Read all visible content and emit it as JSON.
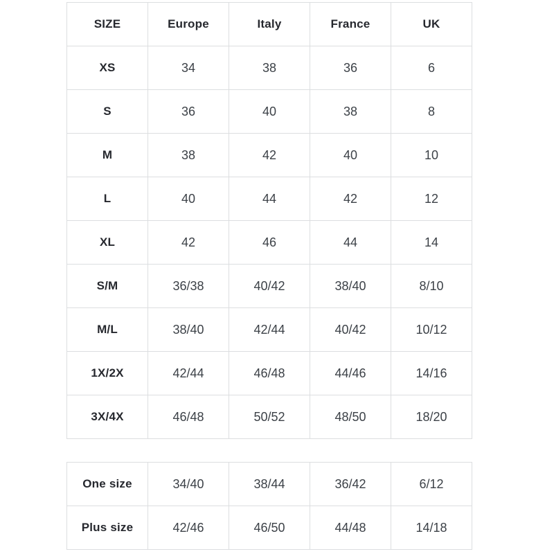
{
  "chart_data": {
    "type": "table",
    "columns": [
      "SIZE",
      "Europe",
      "Italy",
      "France",
      "UK"
    ],
    "rows": [
      [
        "XS",
        "34",
        "38",
        "36",
        "6"
      ],
      [
        "S",
        "36",
        "40",
        "38",
        "8"
      ],
      [
        "M",
        "38",
        "42",
        "40",
        "10"
      ],
      [
        "L",
        "40",
        "44",
        "42",
        "12"
      ],
      [
        "XL",
        "42",
        "46",
        "44",
        "14"
      ],
      [
        "S/M",
        "36/38",
        "40/42",
        "38/40",
        "8/10"
      ],
      [
        "M/L",
        "38/40",
        "42/44",
        "40/42",
        "10/12"
      ],
      [
        "1X/2X",
        "42/44",
        "46/48",
        "44/46",
        "14/16"
      ],
      [
        "3X/4X",
        "46/48",
        "50/52",
        "48/50",
        "18/20"
      ]
    ],
    "secondary_table_rows": [
      [
        "One size",
        "34/40",
        "38/44",
        "36/42",
        "6/12"
      ],
      [
        "Plus size",
        "42/46",
        "46/50",
        "44/48",
        "14/18"
      ]
    ],
    "layout_hints": {
      "grid": "on",
      "two_tables": true,
      "header_bold": true,
      "first_column_bold": true
    }
  },
  "size_table": {
    "headers": [
      "SIZE",
      "Europe",
      "Italy",
      "France",
      "UK"
    ],
    "rows": [
      {
        "size": "XS",
        "values": [
          "34",
          "38",
          "36",
          "6"
        ]
      },
      {
        "size": "S",
        "values": [
          "36",
          "40",
          "38",
          "8"
        ]
      },
      {
        "size": "M",
        "values": [
          "38",
          "42",
          "40",
          "10"
        ]
      },
      {
        "size": "L",
        "values": [
          "40",
          "44",
          "42",
          "12"
        ]
      },
      {
        "size": "XL",
        "values": [
          "42",
          "46",
          "44",
          "14"
        ]
      },
      {
        "size": "S/M",
        "values": [
          "36/38",
          "40/42",
          "38/40",
          "8/10"
        ]
      },
      {
        "size": "M/L",
        "values": [
          "38/40",
          "42/44",
          "40/42",
          "10/12"
        ]
      },
      {
        "size": "1X/2X",
        "values": [
          "42/44",
          "46/48",
          "44/46",
          "14/16"
        ]
      },
      {
        "size": "3X/4X",
        "values": [
          "46/48",
          "50/52",
          "48/50",
          "18/20"
        ]
      }
    ]
  },
  "special_table": {
    "rows": [
      {
        "size": "One size",
        "values": [
          "34/40",
          "38/44",
          "36/42",
          "6/12"
        ]
      },
      {
        "size": "Plus size",
        "values": [
          "42/46",
          "46/50",
          "44/48",
          "14/18"
        ]
      }
    ]
  },
  "colors": {
    "background": "#ffffff",
    "border": "#dcdee0",
    "header_text": "#26282e",
    "cell_text": "#3c4147"
  }
}
